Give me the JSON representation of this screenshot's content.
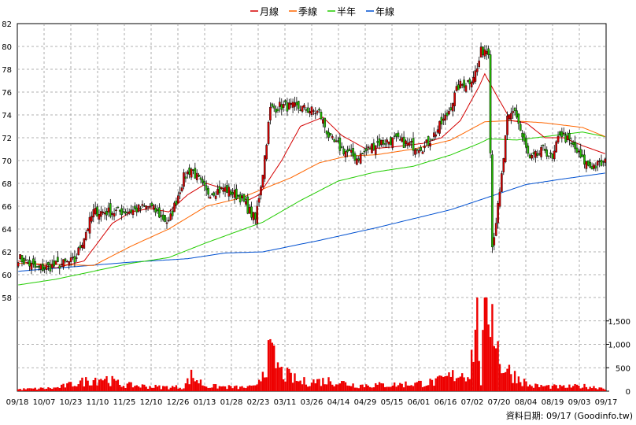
{
  "chart_data": {
    "type": "candlestick",
    "legend": [
      {
        "name": "月線",
        "color": "#d40000"
      },
      {
        "name": "季線",
        "color": "#ff6600"
      },
      {
        "name": "半年",
        "color": "#22cc00"
      },
      {
        "name": "年線",
        "color": "#0050d0"
      }
    ],
    "legend_position": "top-center",
    "price_axis": {
      "ylim": [
        58,
        82
      ],
      "ticks": [
        58,
        60,
        62,
        64,
        66,
        68,
        70,
        72,
        74,
        76,
        78,
        80,
        82
      ]
    },
    "volume_axis": {
      "ylim": [
        0,
        2000
      ],
      "ticks": [
        {
          "value": 0,
          "label": "0"
        },
        {
          "value": 500,
          "label": "500"
        },
        {
          "value": 1000,
          "label": "1,000"
        },
        {
          "value": 1500,
          "label": "1,500"
        }
      ]
    },
    "x_ticks": [
      "09/18",
      "10/07",
      "10/23",
      "11/10",
      "11/25",
      "12/10",
      "12/26",
      "01/13",
      "01/28",
      "02/23",
      "03/11",
      "03/26",
      "04/14",
      "04/29",
      "05/15",
      "06/01",
      "06/16",
      "07/02",
      "07/20",
      "08/04",
      "08/19",
      "09/03",
      "09/17"
    ],
    "grid": true,
    "source_note": "資料日期: 09/17  (Goodinfo.tw)",
    "series_anchors": {
      "close": [
        [
          0,
          61.5
        ],
        [
          10,
          60.5
        ],
        [
          20,
          60.8
        ],
        [
          30,
          61.2
        ],
        [
          40,
          65.5
        ],
        [
          50,
          65.5
        ],
        [
          60,
          65.6
        ],
        [
          70,
          66
        ],
        [
          80,
          64.5
        ],
        [
          88,
          68.5
        ],
        [
          92,
          69.3
        ],
        [
          100,
          67.2
        ],
        [
          110,
          67.5
        ],
        [
          118,
          66.8
        ],
        [
          126,
          64.8
        ],
        [
          130,
          69
        ],
        [
          134,
          74.5
        ],
        [
          140,
          74.8
        ],
        [
          150,
          74.6
        ],
        [
          160,
          74.2
        ],
        [
          166,
          71.8
        ],
        [
          172,
          71
        ],
        [
          180,
          70.2
        ],
        [
          190,
          71.5
        ],
        [
          200,
          71.8
        ],
        [
          210,
          71.3
        ],
        [
          216,
          71.2
        ],
        [
          222,
          72.5
        ],
        [
          228,
          74
        ],
        [
          234,
          76.5
        ],
        [
          240,
          77
        ],
        [
          244,
          78
        ],
        [
          246,
          79.5
        ],
        [
          248,
          79.8
        ],
        [
          250,
          79.7
        ],
        [
          252,
          62.5
        ],
        [
          256,
          67
        ],
        [
          260,
          73.5
        ],
        [
          264,
          74.5
        ],
        [
          268,
          72
        ],
        [
          272,
          70
        ],
        [
          276,
          70.5
        ],
        [
          280,
          71
        ],
        [
          284,
          70
        ],
        [
          288,
          72.5
        ],
        [
          292,
          71.8
        ],
        [
          296,
          71
        ],
        [
          300,
          70
        ],
        [
          304,
          69.5
        ],
        [
          308,
          69.6
        ],
        [
          312,
          69.8
        ]
      ],
      "month_ma": [
        [
          0,
          61.2
        ],
        [
          20,
          60.6
        ],
        [
          35,
          61.2
        ],
        [
          50,
          64.5
        ],
        [
          60,
          65.5
        ],
        [
          70,
          65.8
        ],
        [
          80,
          65.5
        ],
        [
          90,
          67
        ],
        [
          100,
          68
        ],
        [
          110,
          67.5
        ],
        [
          122,
          66.5
        ],
        [
          128,
          67
        ],
        [
          140,
          70
        ],
        [
          150,
          73
        ],
        [
          162,
          73.8
        ],
        [
          172,
          72.2
        ],
        [
          185,
          71
        ],
        [
          200,
          71.2
        ],
        [
          215,
          71.5
        ],
        [
          225,
          72
        ],
        [
          235,
          73.5
        ],
        [
          245,
          76.5
        ],
        [
          248,
          77.6
        ],
        [
          255,
          75.5
        ],
        [
          262,
          73.5
        ],
        [
          270,
          73.3
        ],
        [
          280,
          72
        ],
        [
          290,
          72
        ],
        [
          300,
          71.3
        ],
        [
          312,
          70.6
        ]
      ],
      "quarter_ma": [
        [
          0,
          61
        ],
        [
          40,
          60.8
        ],
        [
          60,
          62.5
        ],
        [
          80,
          64
        ],
        [
          100,
          66
        ],
        [
          118,
          66.7
        ],
        [
          130,
          67.5
        ],
        [
          145,
          68.5
        ],
        [
          160,
          69.8
        ],
        [
          175,
          70.4
        ],
        [
          190,
          70.5
        ],
        [
          210,
          71
        ],
        [
          230,
          71.8
        ],
        [
          248,
          73.4
        ],
        [
          262,
          73.5
        ],
        [
          280,
          73.3
        ],
        [
          300,
          72.9
        ],
        [
          312,
          72.1
        ]
      ],
      "half_ma": [
        [
          0,
          59.1
        ],
        [
          20,
          59.6
        ],
        [
          40,
          60.3
        ],
        [
          60,
          61
        ],
        [
          80,
          61.5
        ],
        [
          100,
          62.8
        ],
        [
          120,
          64
        ],
        [
          130,
          64.6
        ],
        [
          150,
          66.5
        ],
        [
          170,
          68.2
        ],
        [
          190,
          69
        ],
        [
          210,
          69.5
        ],
        [
          230,
          70.5
        ],
        [
          245,
          71.5
        ],
        [
          250,
          71.9
        ],
        [
          265,
          71.8
        ],
        [
          280,
          72.1
        ],
        [
          300,
          72.5
        ],
        [
          312,
          72.1
        ]
      ],
      "year_ma": [
        [
          0,
          60.3
        ],
        [
          30,
          60.7
        ],
        [
          60,
          61.1
        ],
        [
          90,
          61.4
        ],
        [
          110,
          61.9
        ],
        [
          130,
          62
        ],
        [
          160,
          63
        ],
        [
          190,
          64.1
        ],
        [
          230,
          65.7
        ],
        [
          250,
          66.8
        ],
        [
          270,
          67.9
        ],
        [
          290,
          68.4
        ],
        [
          312,
          68.9
        ]
      ],
      "volume": [
        [
          0,
          40
        ],
        [
          20,
          70
        ],
        [
          40,
          260
        ],
        [
          45,
          300
        ],
        [
          55,
          140
        ],
        [
          75,
          90
        ],
        [
          88,
          90
        ],
        [
          92,
          330
        ],
        [
          100,
          110
        ],
        [
          118,
          80
        ],
        [
          126,
          90
        ],
        [
          130,
          460
        ],
        [
          134,
          830
        ],
        [
          140,
          400
        ],
        [
          150,
          200
        ],
        [
          166,
          230
        ],
        [
          180,
          130
        ],
        [
          200,
          140
        ],
        [
          216,
          180
        ],
        [
          222,
          200
        ],
        [
          234,
          380
        ],
        [
          240,
          400
        ],
        [
          244,
          1700
        ],
        [
          246,
          200
        ],
        [
          248,
          1600
        ],
        [
          252,
          1950
        ],
        [
          256,
          600
        ],
        [
          262,
          400
        ],
        [
          272,
          120
        ],
        [
          290,
          90
        ],
        [
          300,
          110
        ],
        [
          312,
          70
        ]
      ]
    }
  }
}
